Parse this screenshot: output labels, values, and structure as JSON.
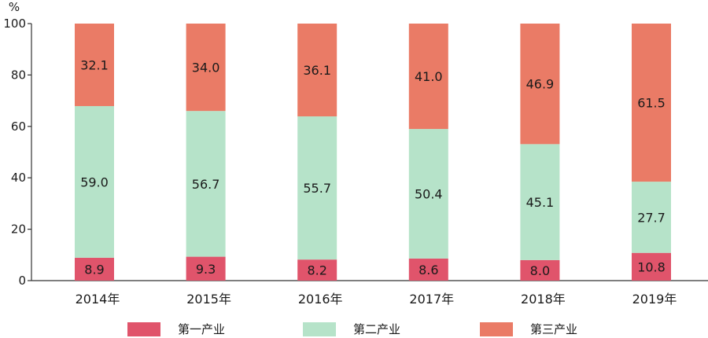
{
  "chart_data": {
    "type": "bar",
    "stacked": true,
    "y_unit": "%",
    "ylim": [
      0,
      100
    ],
    "yticks": [
      0,
      20,
      40,
      60,
      80,
      100
    ],
    "categories": [
      "2014年",
      "2015年",
      "2016年",
      "2017年",
      "2018年",
      "2019年"
    ],
    "series": [
      {
        "name": "第一产业",
        "color": "#e0546b",
        "values": [
          8.9,
          9.3,
          8.2,
          8.6,
          8.0,
          10.8
        ]
      },
      {
        "name": "第二产业",
        "color": "#b6e3c9",
        "values": [
          59.0,
          56.7,
          55.7,
          50.4,
          45.1,
          27.7
        ]
      },
      {
        "name": "第三产业",
        "color": "#ea7b66",
        "values": [
          32.1,
          34.0,
          36.1,
          41.0,
          46.9,
          61.5
        ]
      }
    ],
    "legend_position": "bottom"
  }
}
